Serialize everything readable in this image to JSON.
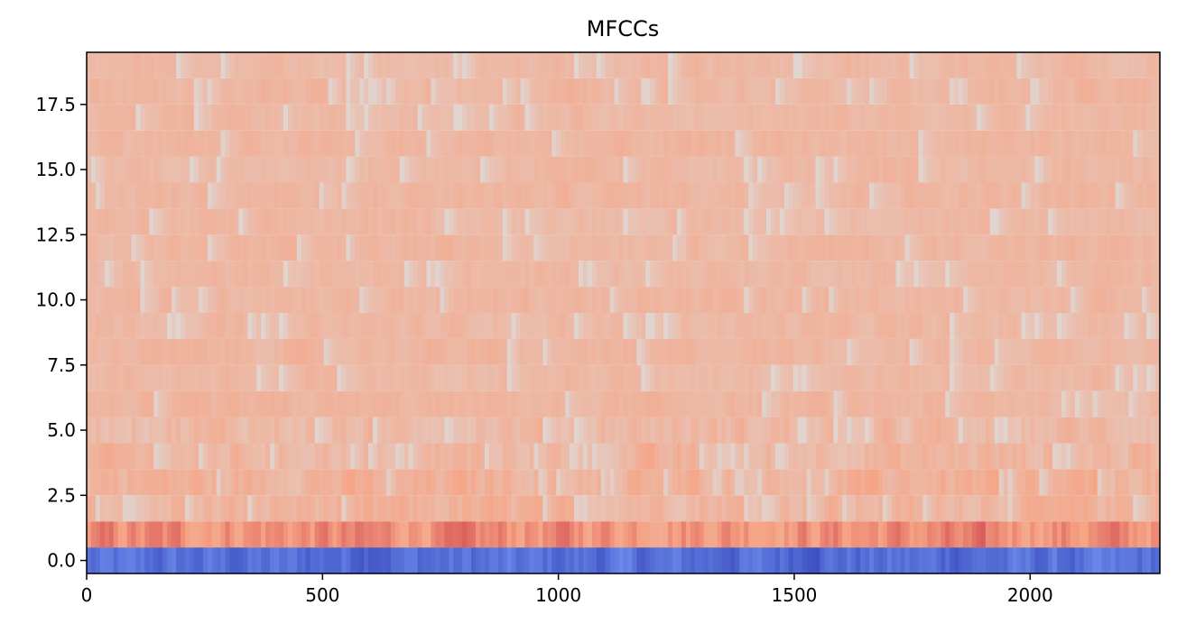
{
  "chart_data": {
    "type": "heatmap",
    "title": "MFCCs",
    "xlabel": "",
    "ylabel": "",
    "xlim": [
      0,
      2275
    ],
    "ylim": [
      -0.5,
      19.5
    ],
    "x_ticks": [
      0,
      500,
      1000,
      1500,
      2000
    ],
    "x_tick_labels": [
      "0",
      "500",
      "1000",
      "1500",
      "2000"
    ],
    "y_ticks": [
      0.0,
      2.5,
      5.0,
      7.5,
      10.0,
      12.5,
      15.0,
      17.5
    ],
    "y_tick_labels": [
      "0.0",
      "2.5",
      "5.0",
      "7.5",
      "10.0",
      "12.5",
      "15.0",
      "17.5"
    ],
    "colormap": "coolwarm",
    "n_rows": 20,
    "n_frames": 2275,
    "row_level_summary": [
      {
        "row": 0,
        "level": 0.1
      },
      {
        "row": 1,
        "level": 0.78
      },
      {
        "row": 2,
        "level": 0.68
      },
      {
        "row": 3,
        "level": 0.69
      },
      {
        "row": 4,
        "level": 0.67
      },
      {
        "row": 5,
        "level": 0.66
      },
      {
        "row": 6,
        "level": 0.67
      },
      {
        "row": 7,
        "level": 0.66
      },
      {
        "row": 8,
        "level": 0.67
      },
      {
        "row": 9,
        "level": 0.66
      },
      {
        "row": 10,
        "level": 0.67
      },
      {
        "row": 11,
        "level": 0.66
      },
      {
        "row": 12,
        "level": 0.67
      },
      {
        "row": 13,
        "level": 0.66
      },
      {
        "row": 14,
        "level": 0.67
      },
      {
        "row": 15,
        "level": 0.66
      },
      {
        "row": 16,
        "level": 0.67
      },
      {
        "row": 17,
        "level": 0.66
      },
      {
        "row": 18,
        "level": 0.67
      },
      {
        "row": 19,
        "level": 0.66
      }
    ],
    "grid": false
  }
}
